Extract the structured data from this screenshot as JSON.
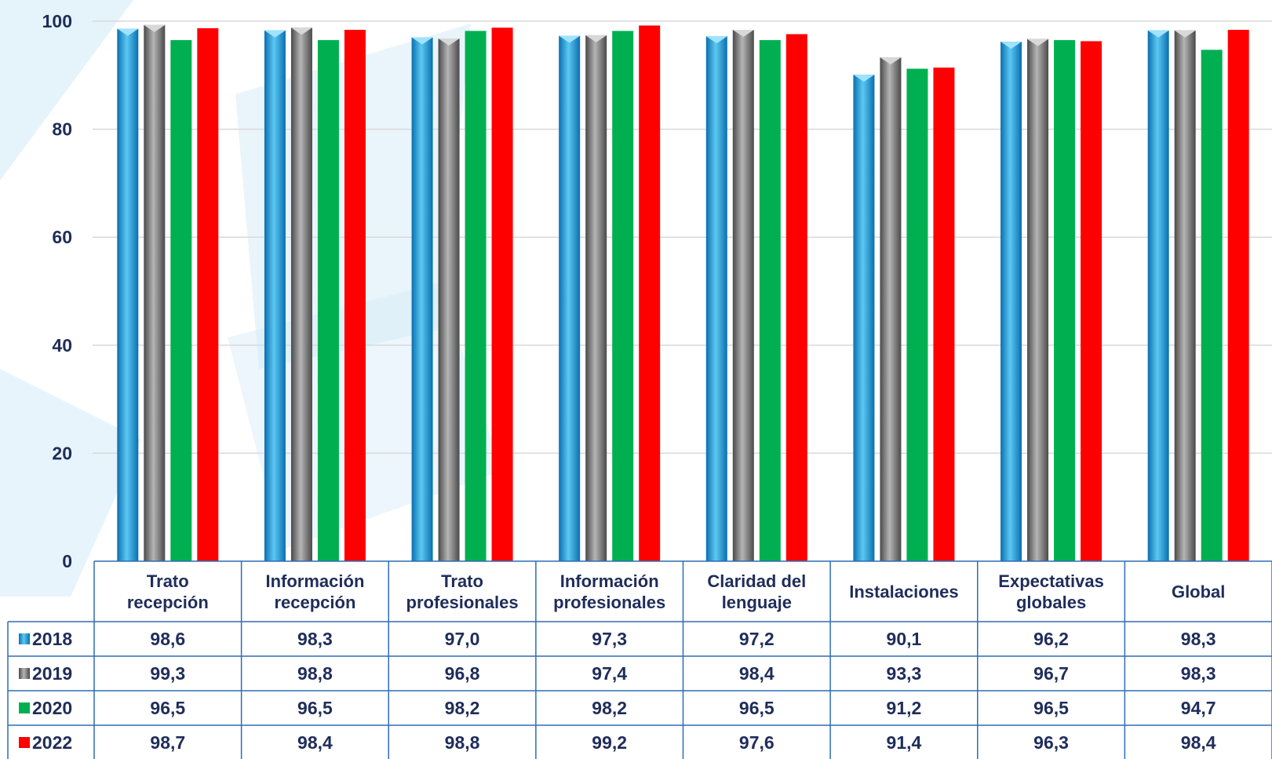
{
  "chart_data": {
    "type": "bar",
    "categories": [
      [
        "Trato",
        "recepción"
      ],
      [
        "Información",
        "recepción"
      ],
      [
        "Trato",
        "profesionales"
      ],
      [
        "Información",
        "profesionales"
      ],
      [
        "Claridad del",
        "lenguaje"
      ],
      [
        "Instalaciones"
      ],
      [
        "Expectativas",
        "globales"
      ],
      [
        "Global"
      ]
    ],
    "series": [
      {
        "name": "2018",
        "color": "#29a8e0",
        "values": [
          98.6,
          98.3,
          97.0,
          97.3,
          97.2,
          90.1,
          96.2,
          98.3
        ],
        "labels": [
          "98,6",
          "98,3",
          "97,0",
          "97,3",
          "97,2",
          "90,1",
          "96,2",
          "98,3"
        ]
      },
      {
        "name": "2019",
        "color": "#8c8c8c",
        "values": [
          99.3,
          98.8,
          96.8,
          97.4,
          98.4,
          93.3,
          96.7,
          98.3
        ],
        "labels": [
          "99,3",
          "98,8",
          "96,8",
          "97,4",
          "98,4",
          "93,3",
          "96,7",
          "98,3"
        ]
      },
      {
        "name": "2020",
        "color": "#00b050",
        "values": [
          96.5,
          96.5,
          98.2,
          98.2,
          96.5,
          91.2,
          96.5,
          94.7
        ],
        "labels": [
          "96,5",
          "96,5",
          "98,2",
          "98,2",
          "96,5",
          "91,2",
          "96,5",
          "94,7"
        ]
      },
      {
        "name": "2022",
        "color": "#ff0000",
        "values": [
          98.7,
          98.4,
          98.8,
          99.2,
          97.6,
          91.4,
          96.3,
          98.4
        ],
        "labels": [
          "98,7",
          "98,4",
          "98,8",
          "99,2",
          "97,6",
          "91,4",
          "96,3",
          "98,4"
        ]
      }
    ],
    "ylim": [
      0,
      100
    ],
    "yticks": [
      "0",
      "20",
      "40",
      "60",
      "80",
      "100"
    ],
    "grid": true,
    "legend": "data-table-left",
    "background_color": "#cfe9f7"
  }
}
